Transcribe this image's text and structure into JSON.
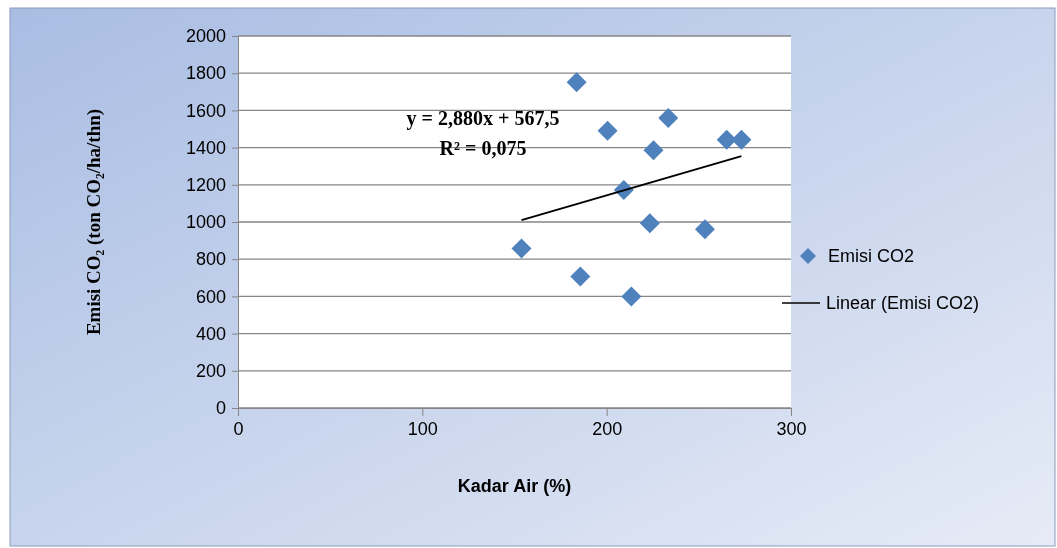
{
  "chart_data": {
    "type": "scatter",
    "xlabel": "Kadar Air (%)",
    "ylabel": "Emisi CO₂ (ton CO₂/ha/thn)",
    "xlim": [
      0,
      300
    ],
    "xticks": [
      0,
      100,
      200,
      300
    ],
    "ylim": [
      0,
      2000
    ],
    "yticks": [
      0,
      200,
      400,
      600,
      800,
      1000,
      1200,
      1400,
      1600,
      1800,
      2000
    ],
    "grid": "y",
    "legend": "right",
    "annotations": [
      "y = 2,880x + 567,5",
      "R² = 0,075"
    ],
    "series": [
      {
        "name": "Emisi CO2",
        "marker": "diamond",
        "color": "#4f81bd",
        "x": [
          153.8,
          183.7,
          185.7,
          200.5,
          209.3,
          213.4,
          223.4,
          225.4,
          233.4,
          253.3,
          265.1,
          273.1
        ],
        "values": [
          858,
          1752,
          707,
          1490,
          1172,
          600,
          993,
          1386,
          1559,
          961,
          1442,
          1442
        ]
      },
      {
        "name": "Linear (Emisi CO2)",
        "type": "line",
        "marker": "none",
        "color": "#000000",
        "x": [
          153.8,
          273.1
        ],
        "values": [
          1010,
          1354
        ]
      }
    ]
  }
}
